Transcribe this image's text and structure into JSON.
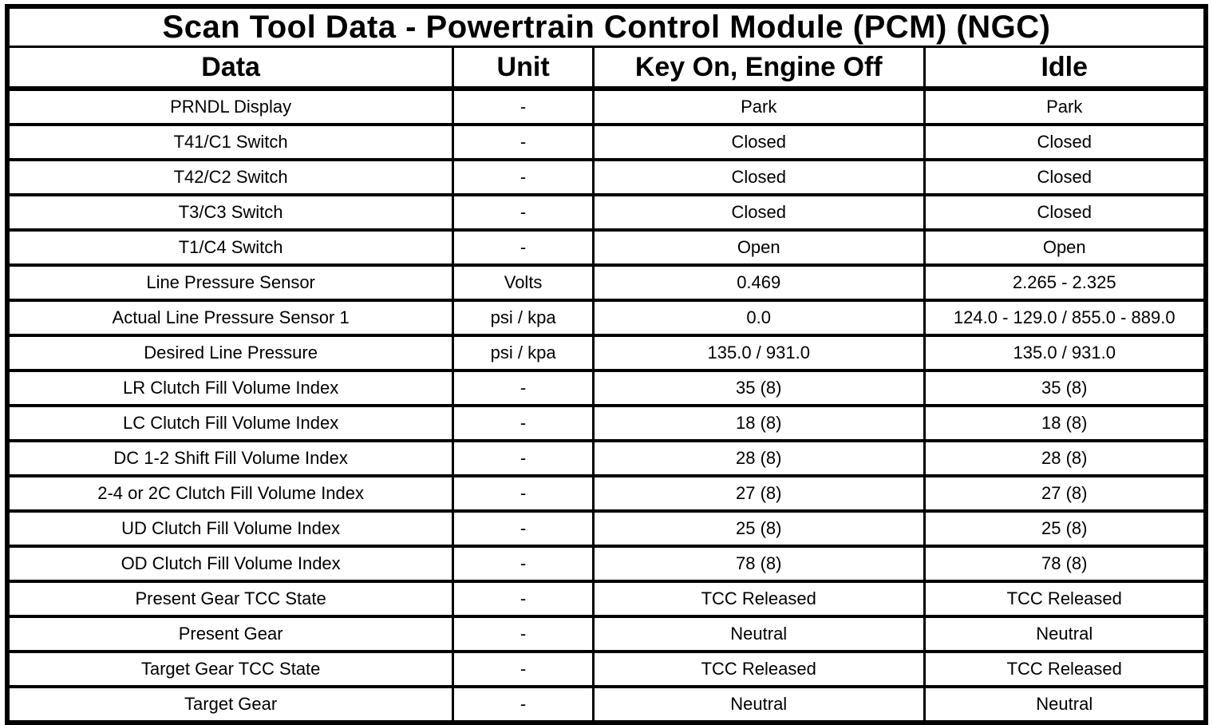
{
  "table": {
    "title": "Scan Tool Data - Powertrain Control Module (PCM) (NGC)",
    "columns": [
      "Data",
      "Unit",
      "Key On, Engine Off",
      "Idle"
    ],
    "rows": [
      [
        "PRNDL Display",
        "-",
        "Park",
        "Park"
      ],
      [
        "T41/C1 Switch",
        "-",
        "Closed",
        "Closed"
      ],
      [
        "T42/C2 Switch",
        "-",
        "Closed",
        "Closed"
      ],
      [
        "T3/C3 Switch",
        "-",
        "Closed",
        "Closed"
      ],
      [
        "T1/C4 Switch",
        "-",
        "Open",
        "Open"
      ],
      [
        "Line Pressure Sensor",
        "Volts",
        "0.469",
        "2.265 - 2.325"
      ],
      [
        "Actual Line Pressure Sensor 1",
        "psi / kpa",
        "0.0",
        "124.0 - 129.0 / 855.0 - 889.0"
      ],
      [
        "Desired Line Pressure",
        "psi / kpa",
        "135.0 / 931.0",
        "135.0 / 931.0"
      ],
      [
        "LR Clutch Fill Volume Index",
        "-",
        "35 (8)",
        "35 (8)"
      ],
      [
        "LC Clutch Fill Volume Index",
        "-",
        "18 (8)",
        "18 (8)"
      ],
      [
        "DC 1-2 Shift Fill Volume Index",
        "-",
        "28 (8)",
        "28 (8)"
      ],
      [
        "2-4 or 2C Clutch Fill Volume Index",
        "-",
        "27 (8)",
        "27 (8)"
      ],
      [
        "UD Clutch Fill Volume Index",
        "-",
        "25 (8)",
        "25 (8)"
      ],
      [
        "OD Clutch Fill Volume Index",
        "-",
        "78 (8)",
        "78 (8)"
      ],
      [
        "Present Gear TCC State",
        "-",
        "TCC Released",
        "TCC Released"
      ],
      [
        "Present Gear",
        "-",
        "Neutral",
        "Neutral"
      ],
      [
        "Target Gear TCC State",
        "-",
        "TCC Released",
        "TCC Released"
      ],
      [
        "Target Gear",
        "-",
        "Neutral",
        "Neutral"
      ]
    ],
    "column_keys": [
      "data",
      "unit",
      "key-on-engine-off",
      "idle"
    ]
  },
  "colors": {
    "border": "#000000",
    "background": "#ffffff",
    "text": "#000000"
  }
}
